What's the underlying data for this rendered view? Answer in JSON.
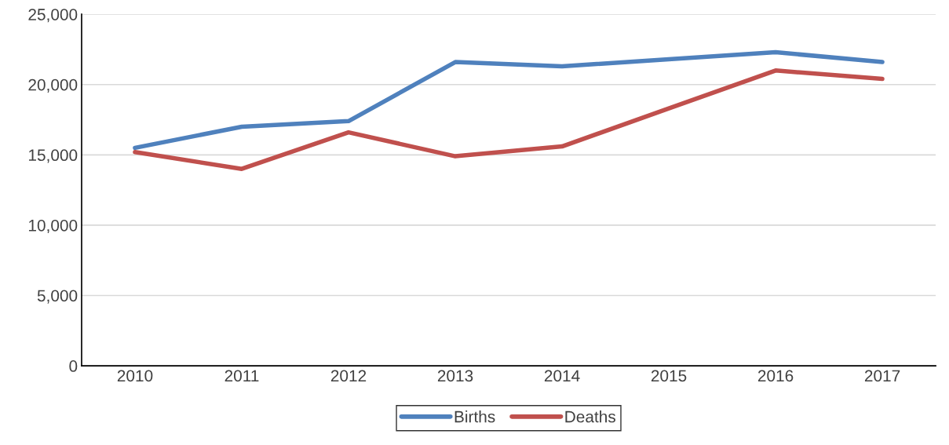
{
  "chart_data": {
    "type": "line",
    "categories": [
      "2010",
      "2011",
      "2012",
      "2013",
      "2014",
      "2015",
      "2016",
      "2017"
    ],
    "series": [
      {
        "name": "Births",
        "color": "#4f81bd",
        "values": [
          15500,
          17000,
          17400,
          21600,
          21300,
          21800,
          22300,
          21600
        ]
      },
      {
        "name": "Deaths",
        "color": "#c0504d",
        "values": [
          15200,
          14000,
          16600,
          14900,
          15600,
          18300,
          21000,
          20400
        ]
      }
    ],
    "ylim": [
      0,
      25000
    ],
    "yticks": [
      {
        "value": 0,
        "label": "0"
      },
      {
        "value": 5000,
        "label": "5,000"
      },
      {
        "value": 10000,
        "label": "10,000"
      },
      {
        "value": 15000,
        "label": "15,000"
      },
      {
        "value": 20000,
        "label": "20,000"
      },
      {
        "value": 25000,
        "label": "25,000"
      }
    ],
    "grid": "y",
    "legend": "bottom",
    "marker": "none",
    "line_style": "solid"
  }
}
